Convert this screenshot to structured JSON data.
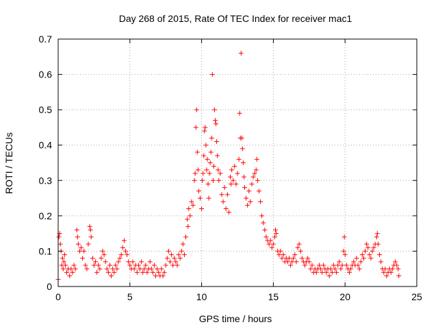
{
  "chart_data": {
    "type": "scatter",
    "title": "Day 268 of 2015, Rate Of TEC Index for receiver mac1",
    "xlabel": "GPS time / hours",
    "ylabel": "ROTI / TECUs",
    "xlim": [
      0,
      25
    ],
    "ylim": [
      0,
      0.7
    ],
    "xticks": [
      0,
      5,
      10,
      15,
      20,
      25
    ],
    "yticks": [
      0,
      0.1,
      0.2,
      0.3,
      0.4,
      0.5,
      0.6,
      0.7
    ],
    "xtick_labels": [
      "0",
      "5",
      "10",
      "15",
      "20",
      "25"
    ],
    "ytick_labels": [
      "0",
      "0.1",
      "0.2",
      "0.3",
      "0.4",
      "0.5",
      "0.6",
      "0.7"
    ],
    "grid": true,
    "marker": "+",
    "color": "#ff0000",
    "series": [
      {
        "name": "",
        "points": [
          [
            0.0,
            0.02
          ],
          [
            0.05,
            0.14
          ],
          [
            0.1,
            0.15
          ],
          [
            0.15,
            0.12
          ],
          [
            0.2,
            0.1
          ],
          [
            0.25,
            0.06
          ],
          [
            0.3,
            0.08
          ],
          [
            0.35,
            0.05
          ],
          [
            0.4,
            0.07
          ],
          [
            0.45,
            0.09
          ],
          [
            0.5,
            0.06
          ],
          [
            0.6,
            0.04
          ],
          [
            0.7,
            0.05
          ],
          [
            0.8,
            0.03
          ],
          [
            0.9,
            0.05
          ],
          [
            1.0,
            0.04
          ],
          [
            1.1,
            0.06
          ],
          [
            1.2,
            0.05
          ],
          [
            1.3,
            0.16
          ],
          [
            1.35,
            0.14
          ],
          [
            1.4,
            0.12
          ],
          [
            1.5,
            0.1
          ],
          [
            1.6,
            0.11
          ],
          [
            1.7,
            0.08
          ],
          [
            1.8,
            0.1
          ],
          [
            1.9,
            0.06
          ],
          [
            2.0,
            0.05
          ],
          [
            2.1,
            0.12
          ],
          [
            2.2,
            0.17
          ],
          [
            2.25,
            0.16
          ],
          [
            2.3,
            0.14
          ],
          [
            2.4,
            0.08
          ],
          [
            2.5,
            0.06
          ],
          [
            2.6,
            0.07
          ],
          [
            2.7,
            0.04
          ],
          [
            2.8,
            0.06
          ],
          [
            2.9,
            0.05
          ],
          [
            3.0,
            0.08
          ],
          [
            3.1,
            0.1
          ],
          [
            3.2,
            0.09
          ],
          [
            3.3,
            0.07
          ],
          [
            3.4,
            0.05
          ],
          [
            3.5,
            0.04
          ],
          [
            3.6,
            0.06
          ],
          [
            3.7,
            0.03
          ],
          [
            3.8,
            0.05
          ],
          [
            3.9,
            0.04
          ],
          [
            4.0,
            0.06
          ],
          [
            4.1,
            0.05
          ],
          [
            4.2,
            0.07
          ],
          [
            4.3,
            0.08
          ],
          [
            4.4,
            0.09
          ],
          [
            4.5,
            0.11
          ],
          [
            4.6,
            0.13
          ],
          [
            4.7,
            0.1
          ],
          [
            4.8,
            0.09
          ],
          [
            4.9,
            0.07
          ],
          [
            5.0,
            0.06
          ],
          [
            5.1,
            0.05
          ],
          [
            5.2,
            0.07
          ],
          [
            5.3,
            0.05
          ],
          [
            5.4,
            0.06
          ],
          [
            5.5,
            0.04
          ],
          [
            5.6,
            0.06
          ],
          [
            5.7,
            0.05
          ],
          [
            5.8,
            0.07
          ],
          [
            5.9,
            0.04
          ],
          [
            6.0,
            0.05
          ],
          [
            6.1,
            0.06
          ],
          [
            6.2,
            0.04
          ],
          [
            6.3,
            0.05
          ],
          [
            6.4,
            0.07
          ],
          [
            6.5,
            0.05
          ],
          [
            6.6,
            0.04
          ],
          [
            6.7,
            0.06
          ],
          [
            6.8,
            0.03
          ],
          [
            6.9,
            0.05
          ],
          [
            7.0,
            0.04
          ],
          [
            7.1,
            0.03
          ],
          [
            7.2,
            0.05
          ],
          [
            7.3,
            0.03
          ],
          [
            7.4,
            0.04
          ],
          [
            7.5,
            0.06
          ],
          [
            7.6,
            0.08
          ],
          [
            7.7,
            0.1
          ],
          [
            7.8,
            0.07
          ],
          [
            7.9,
            0.09
          ],
          [
            8.0,
            0.06
          ],
          [
            8.1,
            0.08
          ],
          [
            8.2,
            0.07
          ],
          [
            8.3,
            0.06
          ],
          [
            8.4,
            0.09
          ],
          [
            8.5,
            0.08
          ],
          [
            8.6,
            0.1
          ],
          [
            8.7,
            0.12
          ],
          [
            8.8,
            0.09
          ],
          [
            8.9,
            0.14
          ],
          [
            9.0,
            0.19
          ],
          [
            9.05,
            0.17
          ],
          [
            9.1,
            0.22
          ],
          [
            9.2,
            0.2
          ],
          [
            9.3,
            0.24
          ],
          [
            9.4,
            0.23
          ],
          [
            9.5,
            0.3
          ],
          [
            9.55,
            0.32
          ],
          [
            9.6,
            0.45
          ],
          [
            9.65,
            0.5
          ],
          [
            9.7,
            0.38
          ],
          [
            9.75,
            0.33
          ],
          [
            9.8,
            0.27
          ],
          [
            9.9,
            0.25
          ],
          [
            10.0,
            0.22
          ],
          [
            10.05,
            0.3
          ],
          [
            10.1,
            0.32
          ],
          [
            10.15,
            0.37
          ],
          [
            10.2,
            0.44
          ],
          [
            10.25,
            0.45
          ],
          [
            10.3,
            0.4
          ],
          [
            10.35,
            0.33
          ],
          [
            10.4,
            0.36
          ],
          [
            10.45,
            0.29
          ],
          [
            10.5,
            0.25
          ],
          [
            10.55,
            0.32
          ],
          [
            10.6,
            0.35
          ],
          [
            10.65,
            0.38
          ],
          [
            10.7,
            0.42
          ],
          [
            10.75,
            0.6
          ],
          [
            10.8,
            0.3
          ],
          [
            10.85,
            0.34
          ],
          [
            10.9,
            0.5
          ],
          [
            10.95,
            0.47
          ],
          [
            11.0,
            0.46
          ],
          [
            11.05,
            0.41
          ],
          [
            11.1,
            0.37
          ],
          [
            11.15,
            0.33
          ],
          [
            11.2,
            0.3
          ],
          [
            11.3,
            0.32
          ],
          [
            11.4,
            0.26
          ],
          [
            11.5,
            0.24
          ],
          [
            11.6,
            0.28
          ],
          [
            11.7,
            0.22
          ],
          [
            11.8,
            0.26
          ],
          [
            11.9,
            0.21
          ],
          [
            12.0,
            0.31
          ],
          [
            12.05,
            0.29
          ],
          [
            12.1,
            0.33
          ],
          [
            12.2,
            0.3
          ],
          [
            12.3,
            0.34
          ],
          [
            12.4,
            0.29
          ],
          [
            12.5,
            0.32
          ],
          [
            12.6,
            0.36
          ],
          [
            12.65,
            0.49
          ],
          [
            12.7,
            0.42
          ],
          [
            12.75,
            0.66
          ],
          [
            12.8,
            0.42
          ],
          [
            12.85,
            0.39
          ],
          [
            12.9,
            0.35
          ],
          [
            12.95,
            0.31
          ],
          [
            13.0,
            0.28
          ],
          [
            13.1,
            0.25
          ],
          [
            13.2,
            0.23
          ],
          [
            13.3,
            0.27
          ],
          [
            13.4,
            0.24
          ],
          [
            13.5,
            0.29
          ],
          [
            13.6,
            0.31
          ],
          [
            13.7,
            0.32
          ],
          [
            13.8,
            0.33
          ],
          [
            13.85,
            0.36
          ],
          [
            13.9,
            0.3
          ],
          [
            14.0,
            0.27
          ],
          [
            14.1,
            0.24
          ],
          [
            14.2,
            0.2
          ],
          [
            14.3,
            0.18
          ],
          [
            14.4,
            0.16
          ],
          [
            14.5,
            0.14
          ],
          [
            14.6,
            0.13
          ],
          [
            14.7,
            0.12
          ],
          [
            14.8,
            0.13
          ],
          [
            14.9,
            0.11
          ],
          [
            15.0,
            0.12
          ],
          [
            15.1,
            0.14
          ],
          [
            15.15,
            0.16
          ],
          [
            15.2,
            0.15
          ],
          [
            15.3,
            0.1
          ],
          [
            15.4,
            0.09
          ],
          [
            15.5,
            0.1
          ],
          [
            15.6,
            0.08
          ],
          [
            15.7,
            0.09
          ],
          [
            15.8,
            0.07
          ],
          [
            15.9,
            0.08
          ],
          [
            16.0,
            0.07
          ],
          [
            16.1,
            0.08
          ],
          [
            16.2,
            0.06
          ],
          [
            16.3,
            0.07
          ],
          [
            16.4,
            0.08
          ],
          [
            16.5,
            0.09
          ],
          [
            16.6,
            0.07
          ],
          [
            16.7,
            0.11
          ],
          [
            16.8,
            0.12
          ],
          [
            16.9,
            0.1
          ],
          [
            17.0,
            0.08
          ],
          [
            17.1,
            0.07
          ],
          [
            17.2,
            0.06
          ],
          [
            17.3,
            0.07
          ],
          [
            17.4,
            0.08
          ],
          [
            17.5,
            0.07
          ],
          [
            17.6,
            0.05
          ],
          [
            17.7,
            0.06
          ],
          [
            17.8,
            0.04
          ],
          [
            17.9,
            0.05
          ],
          [
            18.0,
            0.04
          ],
          [
            18.1,
            0.05
          ],
          [
            18.2,
            0.06
          ],
          [
            18.3,
            0.05
          ],
          [
            18.4,
            0.04
          ],
          [
            18.5,
            0.06
          ],
          [
            18.6,
            0.05
          ],
          [
            18.7,
            0.04
          ],
          [
            18.8,
            0.05
          ],
          [
            18.9,
            0.03
          ],
          [
            19.0,
            0.05
          ],
          [
            19.1,
            0.04
          ],
          [
            19.2,
            0.06
          ],
          [
            19.3,
            0.05
          ],
          [
            19.4,
            0.04
          ],
          [
            19.5,
            0.06
          ],
          [
            19.6,
            0.07
          ],
          [
            19.7,
            0.05
          ],
          [
            19.8,
            0.06
          ],
          [
            19.9,
            0.1
          ],
          [
            19.95,
            0.14
          ],
          [
            20.0,
            0.09
          ],
          [
            20.1,
            0.06
          ],
          [
            20.2,
            0.05
          ],
          [
            20.3,
            0.04
          ],
          [
            20.4,
            0.05
          ],
          [
            20.5,
            0.06
          ],
          [
            20.6,
            0.07
          ],
          [
            20.7,
            0.06
          ],
          [
            20.8,
            0.08
          ],
          [
            20.9,
            0.06
          ],
          [
            21.0,
            0.05
          ],
          [
            21.1,
            0.07
          ],
          [
            21.2,
            0.09
          ],
          [
            21.3,
            0.08
          ],
          [
            21.4,
            0.1
          ],
          [
            21.5,
            0.12
          ],
          [
            21.6,
            0.11
          ],
          [
            21.7,
            0.09
          ],
          [
            21.8,
            0.08
          ],
          [
            21.9,
            0.1
          ],
          [
            22.0,
            0.11
          ],
          [
            22.1,
            0.12
          ],
          [
            22.2,
            0.14
          ],
          [
            22.25,
            0.15
          ],
          [
            22.3,
            0.12
          ],
          [
            22.4,
            0.09
          ],
          [
            22.5,
            0.07
          ],
          [
            22.6,
            0.05
          ],
          [
            22.7,
            0.04
          ],
          [
            22.8,
            0.05
          ],
          [
            22.9,
            0.03
          ],
          [
            23.0,
            0.04
          ],
          [
            23.1,
            0.05
          ],
          [
            23.2,
            0.04
          ],
          [
            23.3,
            0.05
          ],
          [
            23.4,
            0.06
          ],
          [
            23.5,
            0.07
          ],
          [
            23.6,
            0.06
          ],
          [
            23.7,
            0.05
          ],
          [
            23.75,
            0.03
          ]
        ]
      }
    ]
  }
}
